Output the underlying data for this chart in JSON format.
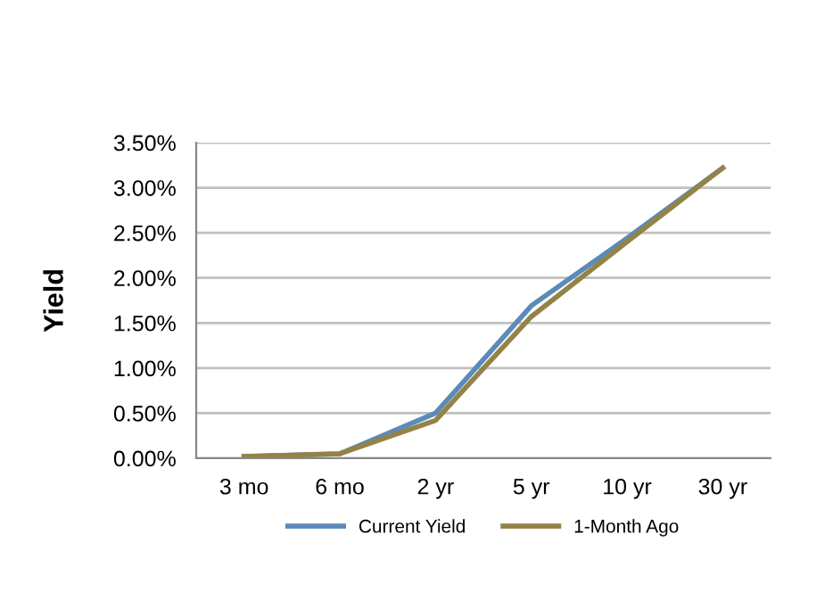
{
  "chart_data": {
    "type": "line",
    "ylabel": "Yield",
    "categories": [
      "3 mo",
      "6 mo",
      "2 yr",
      "5 yr",
      "10 yr",
      "30 yr"
    ],
    "series": [
      {
        "name": "Current Yield",
        "color": "#5b8bb7",
        "values": [
          0.02,
          0.05,
          0.5,
          1.69,
          2.44,
          3.22
        ]
      },
      {
        "name": "1-Month Ago",
        "color": "#948346",
        "values": [
          0.02,
          0.05,
          0.42,
          1.57,
          2.4,
          3.22
        ]
      }
    ],
    "ylim": [
      0,
      3.5
    ],
    "yticks": [
      {
        "value": 0,
        "label": "0.00%"
      },
      {
        "value": 0.5,
        "label": "0.50%"
      },
      {
        "value": 1,
        "label": "1.00%"
      },
      {
        "value": 1.5,
        "label": "1.50%"
      },
      {
        "value": 2,
        "label": "2.00%"
      },
      {
        "value": 2.5,
        "label": "2.50%"
      },
      {
        "value": 3,
        "label": "3.00%"
      },
      {
        "value": 3.5,
        "label": "3.50%"
      }
    ],
    "grid": "y",
    "legend": "bottom",
    "marker": "none",
    "line_style": "solid"
  }
}
